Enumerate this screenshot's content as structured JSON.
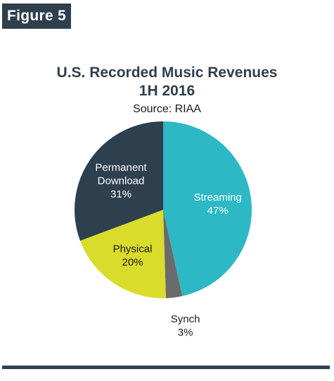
{
  "figure_label": "Figure 5",
  "chart_data": {
    "type": "pie",
    "title": "U.S. Recorded Music Revenues",
    "subtitle": "1H 2016",
    "source": "Source: RIAA",
    "slices": [
      {
        "name": "Streaming",
        "value": 47,
        "value_label": "47%",
        "color": "#2db8c5",
        "label_color": "#ffffff"
      },
      {
        "name": "Synch",
        "value": 3,
        "value_label": "3%",
        "color": "#6b6b6b",
        "label_color": "#1a1a1a"
      },
      {
        "name": "Physical",
        "value": 20,
        "value_label": "20%",
        "color": "#d9dc2a",
        "label_color": "#1a1a1a"
      },
      {
        "name": "Permanent Download",
        "value": 31,
        "value_label": "31%",
        "color": "#2e3f4e",
        "label_color": "#ffffff"
      }
    ]
  }
}
